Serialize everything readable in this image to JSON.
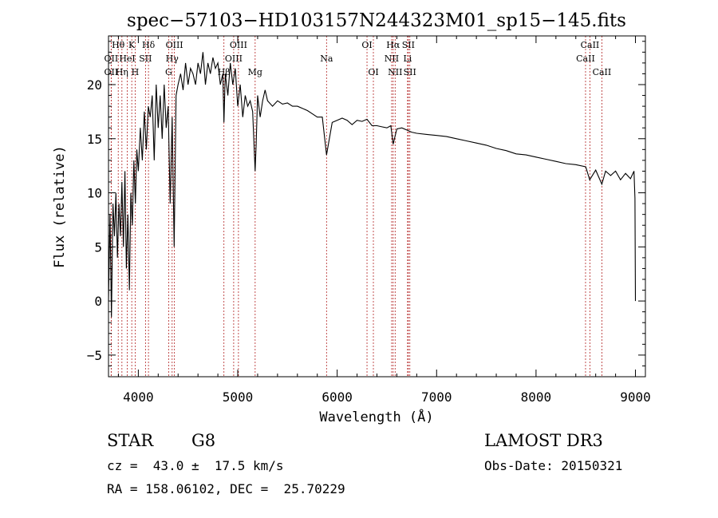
{
  "chart_data": {
    "type": "line",
    "title": "spec−57103−HD103157N244323M01_sp15−145.fits",
    "xlabel": "Wavelength (Å)",
    "ylabel": "Flux (relative)",
    "xlim": [
      3700,
      9100
    ],
    "ylim": [
      -7,
      24.5
    ],
    "xticks": [
      4000,
      5000,
      6000,
      7000,
      8000,
      9000
    ],
    "yticks": [
      -5,
      0,
      5,
      10,
      15,
      20
    ],
    "xtick_labels": [
      "4000",
      "5000",
      "6000",
      "7000",
      "8000",
      "9000"
    ],
    "ytick_labels": [
      "−5",
      "0",
      "5",
      "10",
      "15",
      "20"
    ],
    "grid": false,
    "line_color": "#000000",
    "marker_color": "#b22222",
    "series": [
      {
        "name": "flux",
        "x": [
          3700,
          3715,
          3730,
          3745,
          3760,
          3775,
          3790,
          3805,
          3820,
          3835,
          3850,
          3865,
          3880,
          3895,
          3910,
          3925,
          3940,
          3955,
          3970,
          3985,
          4000,
          4020,
          4040,
          4060,
          4080,
          4100,
          4120,
          4140,
          4160,
          4180,
          4200,
          4220,
          4240,
          4260,
          4280,
          4300,
          4320,
          4340,
          4360,
          4380,
          4400,
          4425,
          4450,
          4475,
          4500,
          4525,
          4550,
          4575,
          4600,
          4625,
          4650,
          4675,
          4700,
          4725,
          4750,
          4775,
          4800,
          4825,
          4850,
          4861,
          4875,
          4900,
          4925,
          4950,
          4975,
          5000,
          5025,
          5050,
          5075,
          5100,
          5125,
          5150,
          5175,
          5185,
          5200,
          5225,
          5250,
          5275,
          5300,
          5350,
          5400,
          5450,
          5500,
          5550,
          5600,
          5650,
          5700,
          5750,
          5800,
          5850,
          5893,
          5950,
          6000,
          6050,
          6100,
          6150,
          6200,
          6250,
          6300,
          6350,
          6400,
          6450,
          6500,
          6540,
          6563,
          6600,
          6650,
          6700,
          6750,
          6800,
          6900,
          7000,
          7100,
          7200,
          7300,
          7400,
          7500,
          7600,
          7700,
          7800,
          7900,
          8000,
          8100,
          8200,
          8300,
          8400,
          8500,
          8540,
          8600,
          8662,
          8700,
          8750,
          8800,
          8850,
          8900,
          8950,
          8985,
          8995,
          9000
        ],
        "y": [
          0,
          8,
          -1.5,
          9,
          6,
          10,
          4,
          9,
          6,
          11,
          5,
          12,
          3,
          8,
          1,
          10,
          7,
          13,
          9,
          14,
          12,
          16,
          13,
          17.5,
          14,
          18,
          17,
          19,
          13,
          20,
          16,
          19,
          15,
          20,
          16,
          18,
          9,
          17,
          5,
          19,
          20,
          21,
          19.5,
          22,
          20,
          21.5,
          21,
          20,
          22,
          21,
          23,
          20,
          22,
          21,
          22.5,
          21.5,
          22,
          20,
          21,
          16.5,
          21,
          19,
          22,
          20,
          21.5,
          18,
          20,
          17,
          19,
          18,
          18.5,
          17.5,
          12,
          14.5,
          19,
          17,
          18.5,
          19.5,
          18.5,
          18,
          18.5,
          18.2,
          18.3,
          18,
          18,
          17.8,
          17.6,
          17.3,
          17,
          17,
          13.5,
          16.5,
          16.7,
          16.9,
          16.7,
          16.3,
          16.7,
          16.6,
          16.8,
          16.2,
          16.2,
          16.1,
          16,
          16.2,
          14.5,
          15.9,
          16,
          15.8,
          15.6,
          15.5,
          15.4,
          15.3,
          15.2,
          15.0,
          14.8,
          14.6,
          14.4,
          14.1,
          13.9,
          13.6,
          13.5,
          13.3,
          13.1,
          12.9,
          12.7,
          12.6,
          12.4,
          11.2,
          12.1,
          10.8,
          12.0,
          11.6,
          12.0,
          11.2,
          11.8,
          11.3,
          12.0,
          9.5,
          0
        ]
      }
    ],
    "line_markers": [
      {
        "label": "Hθ",
        "x": 3798,
        "row": 1
      },
      {
        "label": "OII",
        "x": 3727,
        "row": 2
      },
      {
        "label": "OII",
        "x": 3727,
        "row": 3
      },
      {
        "label": "K",
        "x": 3934,
        "row": 1
      },
      {
        "label": "HeI",
        "x": 3889,
        "row": 2
      },
      {
        "label": "Hη",
        "x": 3835,
        "row": 3
      },
      {
        "label": "SII",
        "x": 4072,
        "row": 2
      },
      {
        "label": "H",
        "x": 3968,
        "row": 3
      },
      {
        "label": "Hδ",
        "x": 4102,
        "row": 1
      },
      {
        "label": "OIII",
        "x": 4363,
        "row": 1
      },
      {
        "label": "Hγ",
        "x": 4340,
        "row": 2
      },
      {
        "label": "G",
        "x": 4305,
        "row": 3
      },
      {
        "label": "OIII",
        "x": 5007,
        "row": 1
      },
      {
        "label": "OIII",
        "x": 4959,
        "row": 2
      },
      {
        "label": "Hβ",
        "x": 4861,
        "row": 3
      },
      {
        "label": "Mg",
        "x": 5175,
        "row": 3
      },
      {
        "label": "Na",
        "x": 5893,
        "row": 2
      },
      {
        "label": "OI",
        "x": 6300,
        "row": 1
      },
      {
        "label": "OI",
        "x": 6364,
        "row": 3
      },
      {
        "label": "Hα",
        "x": 6563,
        "row": 1
      },
      {
        "label": "SII",
        "x": 6716,
        "row": 1
      },
      {
        "label": "NII",
        "x": 6548,
        "row": 2
      },
      {
        "label": "Li",
        "x": 6708,
        "row": 2
      },
      {
        "label": "NII",
        "x": 6583,
        "row": 3
      },
      {
        "label": "SII",
        "x": 6731,
        "row": 3
      },
      {
        "label": "CaII",
        "x": 8542,
        "row": 1
      },
      {
        "label": "CaII",
        "x": 8498,
        "row": 2
      },
      {
        "label": "CaII",
        "x": 8662,
        "row": 3
      }
    ]
  },
  "info": {
    "class_label": "STAR",
    "subclass": "G8",
    "redshift": "cz =  43.0 ±  17.5 km/s",
    "coords": "RA = 158.06102, DEC =  25.70229",
    "survey": "LAMOST DR3",
    "obs_date": "Obs-Date: 20150321"
  }
}
